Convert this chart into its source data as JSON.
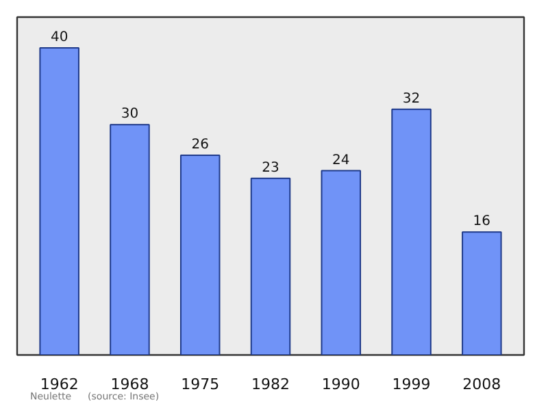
{
  "chart_data": {
    "type": "bar",
    "categories": [
      "1962",
      "1968",
      "1975",
      "1982",
      "1990",
      "1999",
      "2008"
    ],
    "values": [
      40,
      30,
      26,
      23,
      24,
      32,
      16
    ],
    "color": "#7093f7",
    "data_labels": true,
    "grid": false,
    "annotations": [
      "Neulette",
      "(source: Insee)"
    ]
  }
}
